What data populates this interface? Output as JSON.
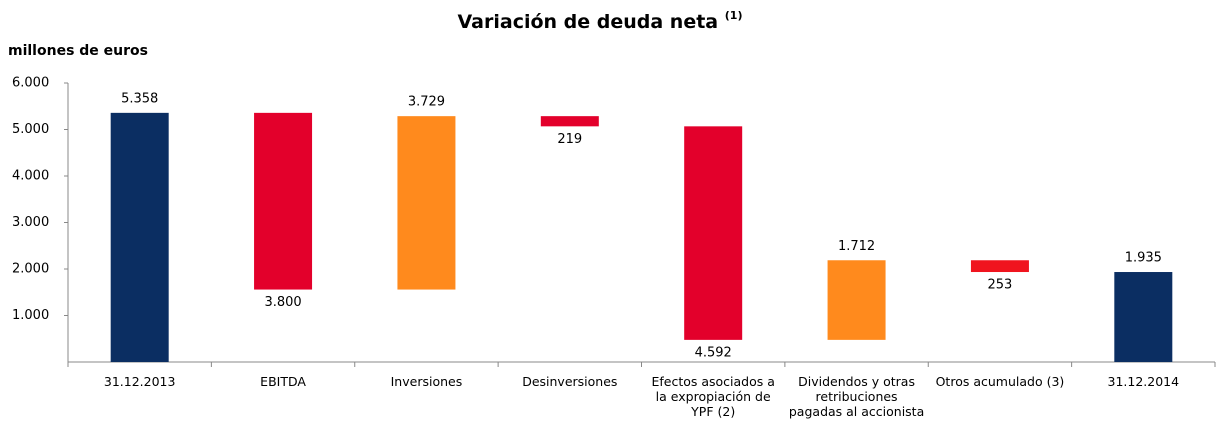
{
  "chart_data": {
    "type": "waterfall",
    "title": "Variación de deuda neta",
    "title_note": "(1)",
    "y_label": "millones de euros",
    "categories": [
      "31.12.2013",
      "EBITDA",
      "Inversiones",
      "Desinversiones",
      "Efectos asociados a la expropiación de YPF (2)",
      "Dividendos y otras retribuciones pagadas al accionista",
      "Otros acumulado (3)",
      "31.12.2014"
    ],
    "values": [
      5358,
      -3800,
      3729,
      -219,
      -4592,
      1712,
      -253,
      1935
    ],
    "value_labels": [
      "5.358",
      "3.800",
      "3.729",
      "219",
      "4.592",
      "1.712",
      "253",
      "1.935"
    ],
    "colors": [
      "#0b2e62",
      "#e3002b",
      "#ff8a1d",
      "#e3002b",
      "#e3002b",
      "#ff8a1d",
      "#f0141e",
      "#0b2e62"
    ],
    "ylim": [
      0,
      6000
    ],
    "yticks": [
      {
        "value": 1000,
        "label": "1.000"
      },
      {
        "value": 2000,
        "label": "2.000"
      },
      {
        "value": 3000,
        "label": "3.000"
      },
      {
        "value": 4000,
        "label": "4.000"
      },
      {
        "value": 5000,
        "label": "5.000"
      },
      {
        "value": 6000,
        "label": "6.000"
      }
    ]
  }
}
